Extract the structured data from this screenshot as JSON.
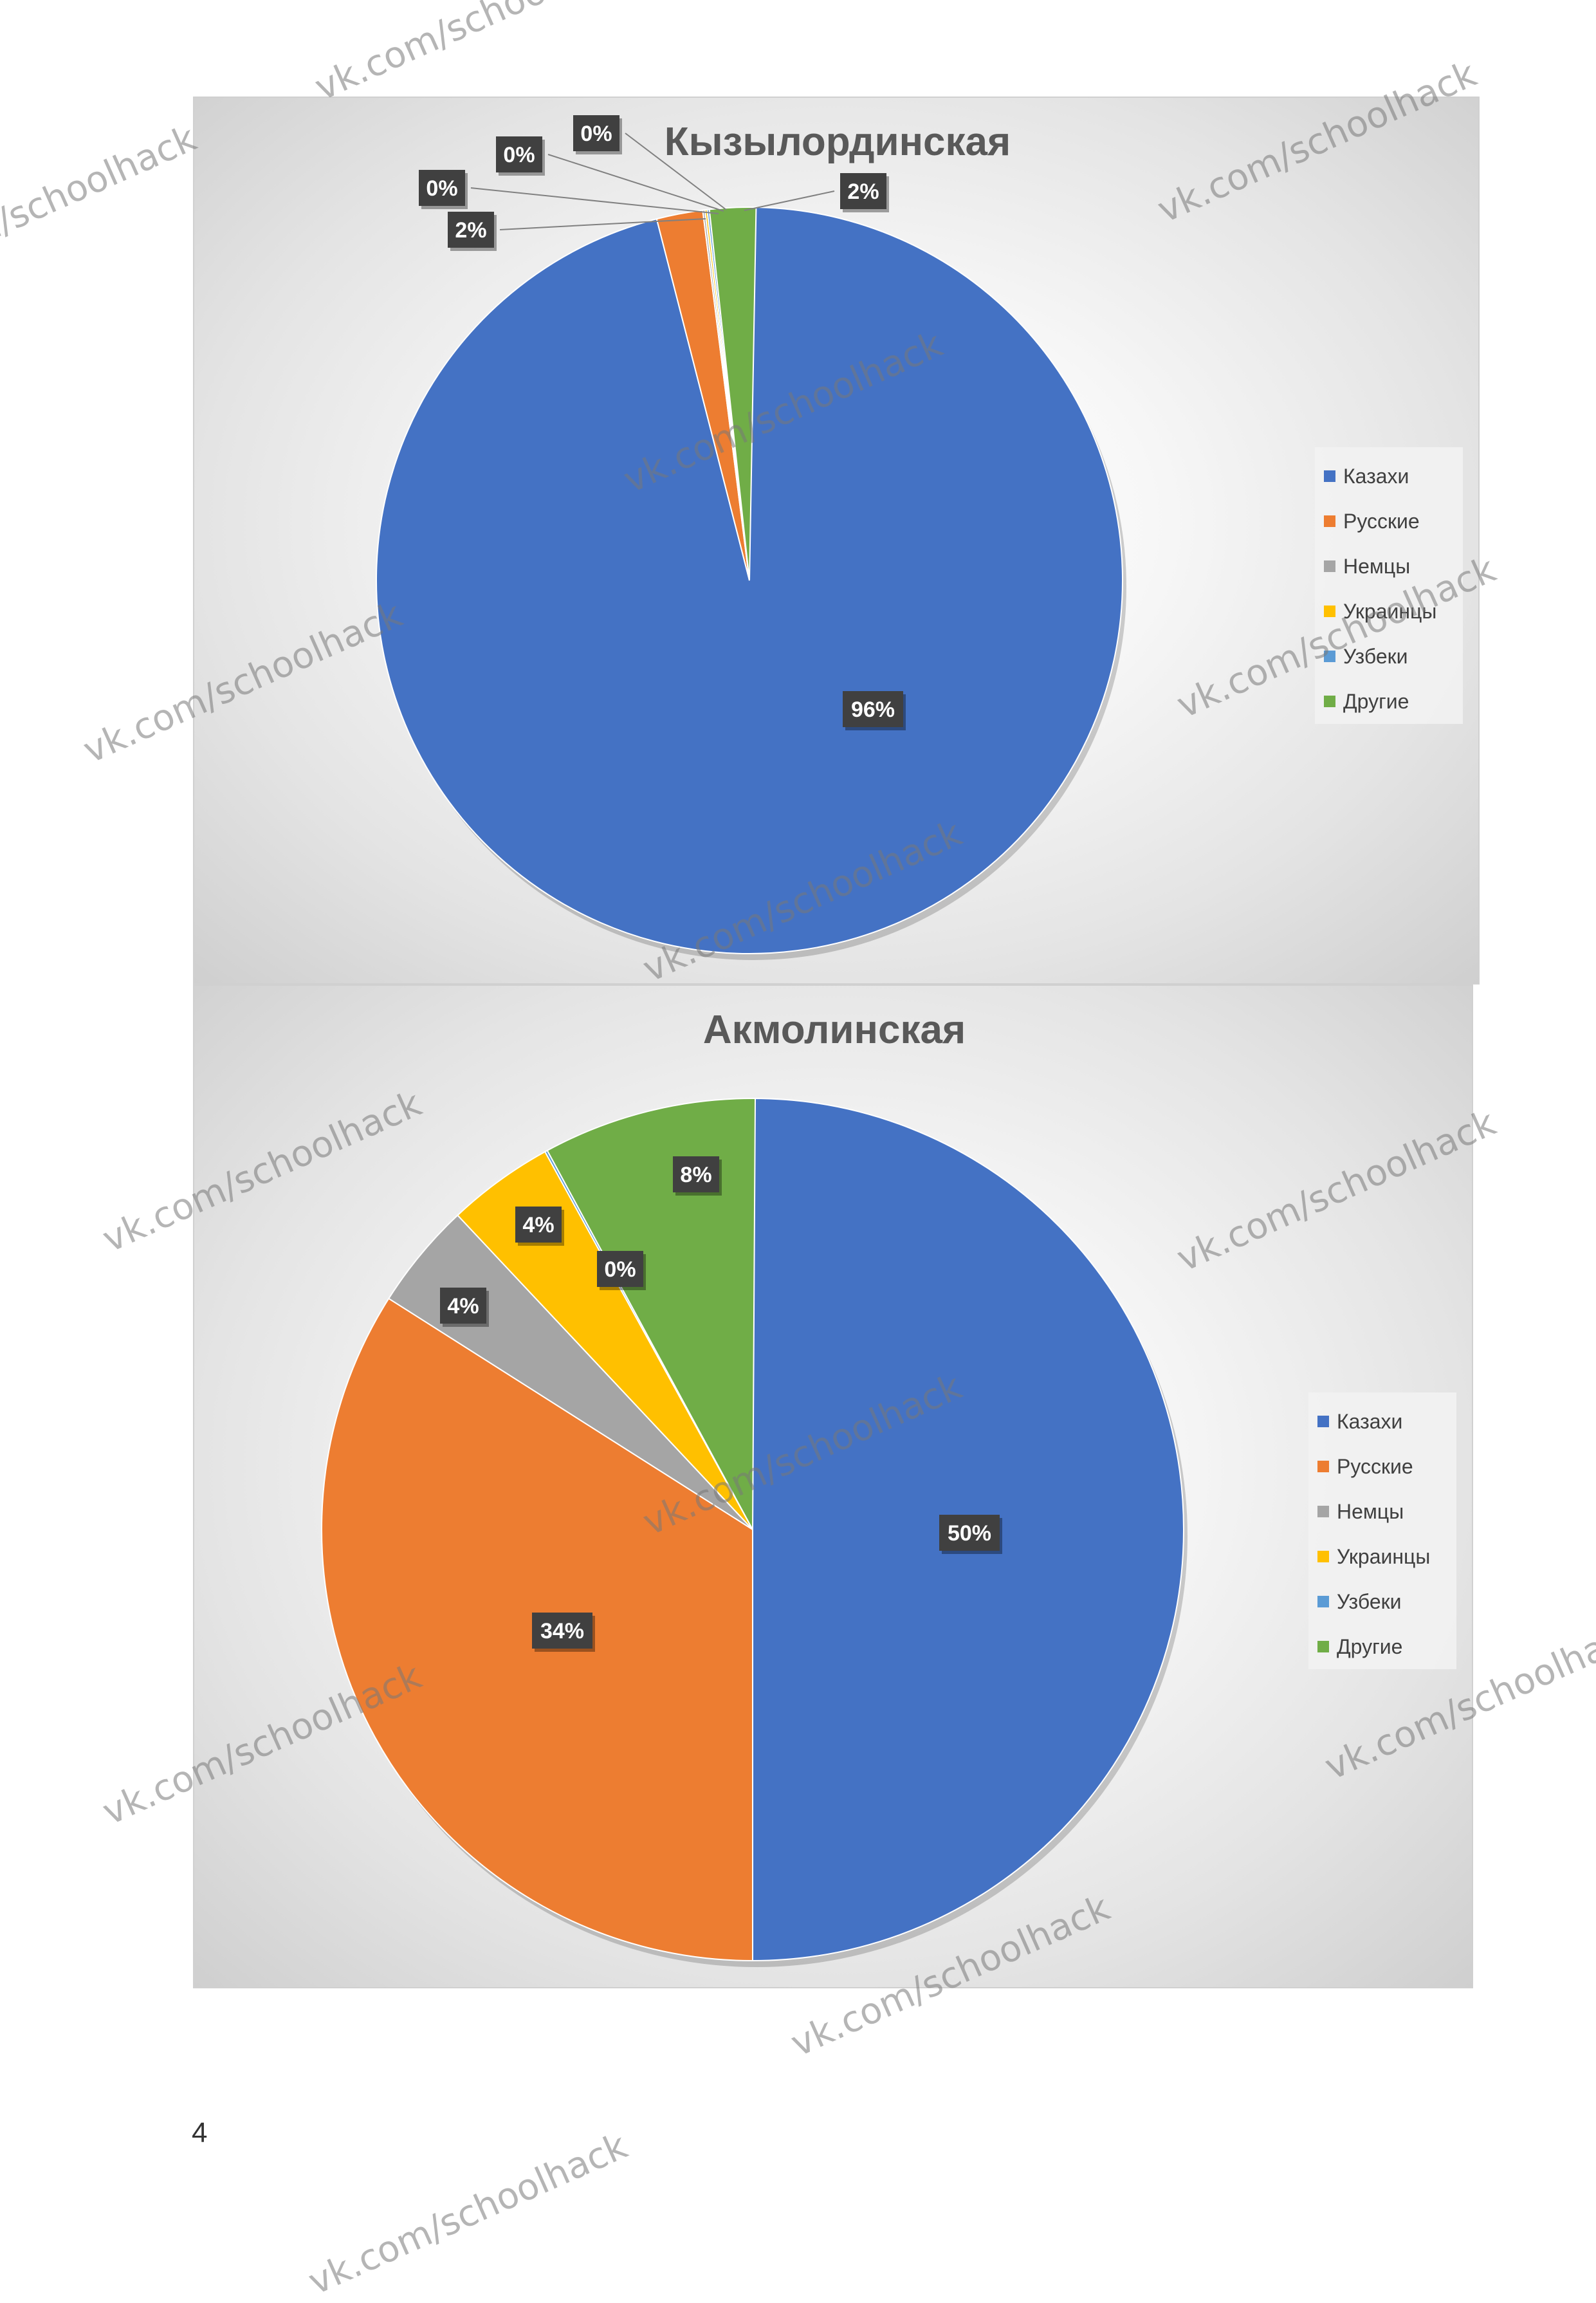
{
  "chart_data": [
    {
      "type": "pie",
      "title": "Кызылординская",
      "categories": [
        "Казахи",
        "Русские",
        "Немцы",
        "Украинцы",
        "Узбеки",
        "Другие"
      ],
      "values": [
        96,
        2,
        0,
        0,
        0,
        2
      ],
      "data_labels": [
        "96%",
        "2%",
        "0%",
        "0%",
        "0%",
        "2%"
      ],
      "colors": [
        "#4472C4",
        "#ED7D31",
        "#A5A5A5",
        "#FFC000",
        "#5B9BD5",
        "#70AD47"
      ],
      "legend_position": "right"
    },
    {
      "type": "pie",
      "title": "Акмолинская",
      "categories": [
        "Казахи",
        "Русские",
        "Немцы",
        "Украинцы",
        "Узбеки",
        "Другие"
      ],
      "values": [
        50,
        34,
        4,
        4,
        0,
        8
      ],
      "data_labels": [
        "50%",
        "34%",
        "4%",
        "4%",
        "0%",
        "8%"
      ],
      "colors": [
        "#4472C4",
        "#ED7D31",
        "#A5A5A5",
        "#FFC000",
        "#5B9BD5",
        "#70AD47"
      ],
      "legend_position": "right"
    }
  ],
  "page": {
    "number": "4"
  },
  "watermark": "vk.com/schoolhack"
}
